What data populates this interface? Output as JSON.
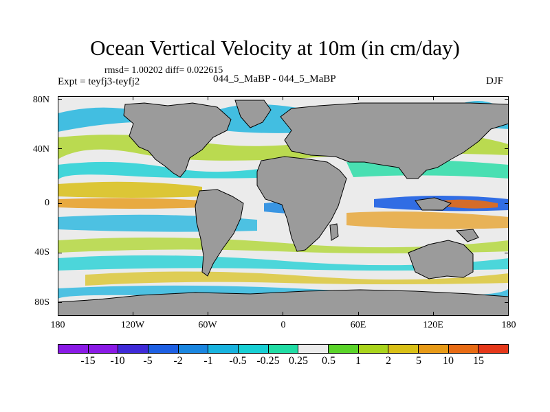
{
  "title": "Ocean Vertical Velocity at 10m (in cm/day)",
  "stats": "rmsd= 1.00202 diff= 0.022615",
  "experiment": "Expt = teyfj3-teyfj2",
  "comparison": "044_5_MaBP - 044_5_MaBP",
  "season": "DJF",
  "lat_labels": [
    "80N",
    "40N",
    "0",
    "40S",
    "80S"
  ],
  "lon_labels": [
    "180",
    "120W",
    "60W",
    "0",
    "60E",
    "120E",
    "180"
  ],
  "colorbar": {
    "labels": [
      "-15",
      "-10",
      "-5",
      "-2",
      "-1",
      "-0.5",
      "-0.25",
      "0.25",
      "0.5",
      "1",
      "2",
      "5",
      "10",
      "15"
    ],
    "colors": [
      "#8a1ae6",
      "#3f2ad8",
      "#1d5fe3",
      "#1a86e0",
      "#18b3df",
      "#17cfd4",
      "#20dca4",
      "#ebebeb",
      "#5ad429",
      "#a9d41c",
      "#d9c016",
      "#e79a17",
      "#e86b14",
      "#e5381a"
    ]
  },
  "colors": {
    "land": "#9b9b9b",
    "ocean_neutral": "#ebebeb"
  }
}
